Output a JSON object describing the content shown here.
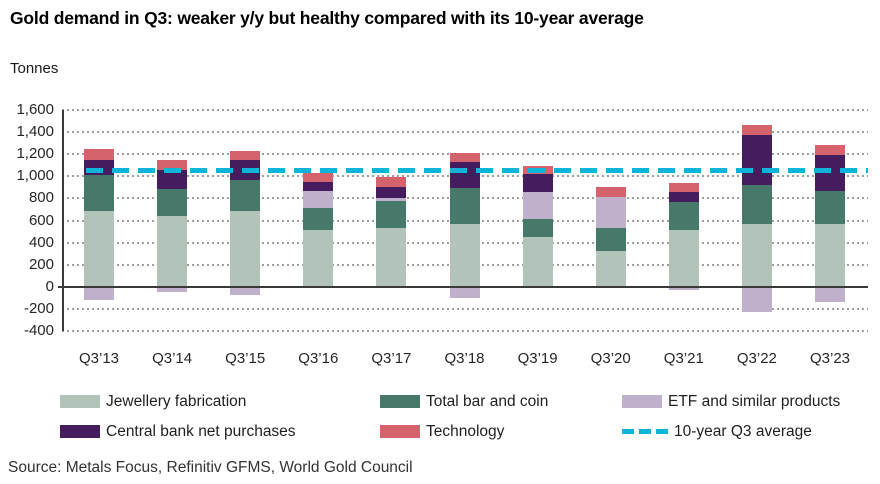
{
  "page": {
    "title": "Gold demand in Q3: weaker y/y but healthy compared with its 10-year average",
    "unit_label": "Tonnes",
    "source": "Source: Metals Focus, Refinitiv GFMS, World Gold Council"
  },
  "chart_data": {
    "type": "bar",
    "stacked": true,
    "title": "Gold demand in Q3: weaker y/y but healthy compared with its 10-year average",
    "ylabel": "Tonnes",
    "xlabel": "",
    "ylim": [
      -400,
      1600
    ],
    "ytick_step": 200,
    "grid": "horizontal-dotted",
    "legend_position": "bottom",
    "categories": [
      "Q3’13",
      "Q3’14",
      "Q3’15",
      "Q3’16",
      "Q3’17",
      "Q3’18",
      "Q3’19",
      "Q3’20",
      "Q3’21",
      "Q3’22",
      "Q3’23"
    ],
    "series": [
      {
        "name": "Jewellery fabrication",
        "color": "#b2c4b9",
        "values": [
          690,
          645,
          685,
          515,
          530,
          570,
          450,
          320,
          510,
          565,
          565
        ]
      },
      {
        "name": "Total bar and coin",
        "color": "#47796b",
        "values": [
          325,
          240,
          285,
          195,
          245,
          320,
          165,
          215,
          255,
          360,
          300
        ]
      },
      {
        "name": "ETF and similar products",
        "color": "#bfb0cb",
        "values": [
          -120,
          -50,
          -70,
          155,
          25,
          -105,
          240,
          280,
          -30,
          -230,
          -140
        ]
      },
      {
        "name": "Central bank net purchases",
        "color": "#451c5e",
        "values": [
          135,
          175,
          175,
          85,
          105,
          240,
          165,
          -10,
          90,
          450,
          330
        ]
      },
      {
        "name": "Technology",
        "color": "#d5636e",
        "values": [
          95,
          85,
          85,
          80,
          85,
          80,
          70,
          85,
          80,
          85,
          85
        ]
      }
    ],
    "average_line": {
      "label": "10-year Q3 average",
      "value": 1050,
      "color": "#0db4d9",
      "style": "dashed"
    },
    "colors": {
      "gridline": "#9e9e9e",
      "axis": "#3a3a3a",
      "text": "#262626"
    }
  }
}
